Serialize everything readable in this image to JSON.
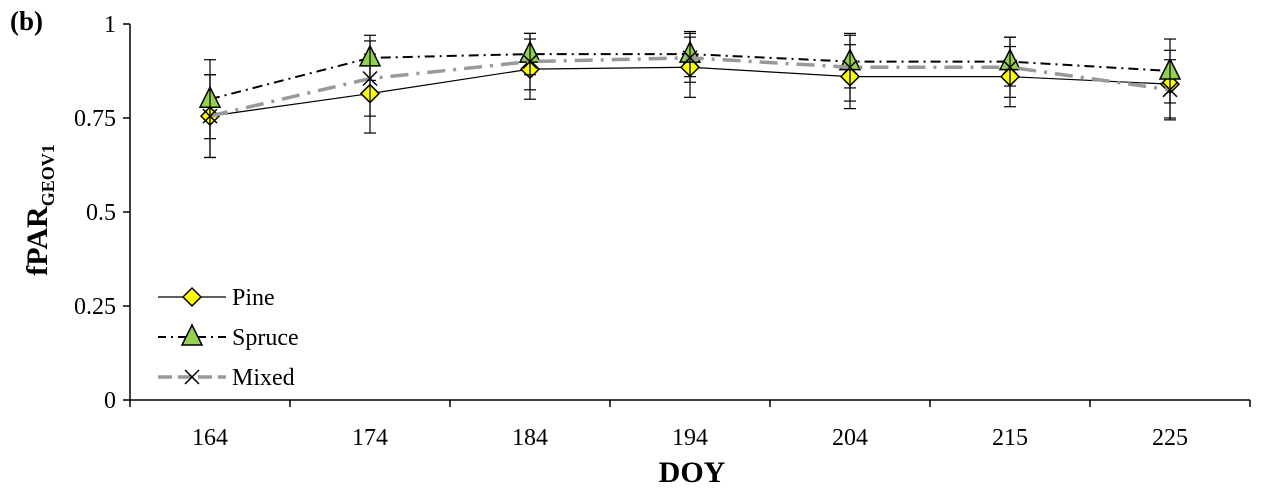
{
  "chart_data": {
    "type": "line",
    "panel_label": "(b)",
    "title": "",
    "xlabel": "DOY",
    "ylabel": "fPAR",
    "ylabel_subscript": "GEOV1",
    "categories": [
      "164",
      "174",
      "184",
      "194",
      "204",
      "215",
      "225"
    ],
    "ylim": [
      0,
      1
    ],
    "yticks": [
      "0",
      "0.25",
      "0.5",
      "0.75",
      "1"
    ],
    "ytick_values": [
      0,
      0.25,
      0.5,
      0.75,
      1
    ],
    "grid": false,
    "legend_position": "bottom-left",
    "series": [
      {
        "name": "Pine",
        "values": [
          0.755,
          0.815,
          0.88,
          0.885,
          0.86,
          0.86,
          0.84
        ],
        "error": [
          0.11,
          0.105,
          0.08,
          0.08,
          0.085,
          0.08,
          0.09
        ],
        "marker": "diamond",
        "line_style": "solid",
        "line_color": "#000000",
        "marker_fill": "#ffff00"
      },
      {
        "name": "Spruce",
        "values": [
          0.8,
          0.91,
          0.92,
          0.92,
          0.9,
          0.9,
          0.875
        ],
        "error": [
          0.105,
          0.06,
          0.055,
          0.06,
          0.07,
          0.065,
          0.085
        ],
        "marker": "triangle",
        "line_style": "dash-dot",
        "line_color": "#000000",
        "marker_fill": "#92d050"
      },
      {
        "name": "Mixed",
        "values": [
          0.755,
          0.855,
          0.9,
          0.91,
          0.885,
          0.885,
          0.825
        ],
        "error": [
          0.11,
          0.1,
          0.075,
          0.065,
          0.09,
          0.08,
          0.08
        ],
        "marker": "x",
        "line_style": "long-dash",
        "line_color": "#999999",
        "marker_fill": "none"
      }
    ]
  }
}
